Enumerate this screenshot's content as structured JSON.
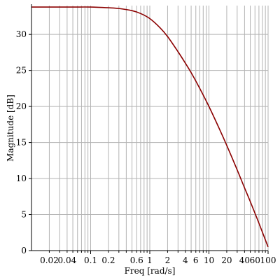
{
  "chart_data": {
    "type": "line",
    "title": "",
    "xlabel": "Freq [rad/s]",
    "ylabel": "Magnitude [dB]",
    "x_scale": "log",
    "xlim": [
      0.01,
      100
    ],
    "ylim": [
      0,
      34
    ],
    "grid": true,
    "x_major_ticks": [
      0.1,
      1,
      10,
      100
    ],
    "x_minor_ticks": [
      0.02,
      0.03,
      0.04,
      0.05,
      0.06,
      0.07,
      0.08,
      0.09,
      0.2,
      0.3,
      0.4,
      0.5,
      0.6,
      0.7,
      0.8,
      0.9,
      2,
      3,
      4,
      5,
      6,
      7,
      8,
      9,
      20,
      30,
      40,
      50,
      60,
      70,
      80,
      90
    ],
    "x_tick_labels": [
      {
        "value": 0.02,
        "label": "0.02"
      },
      {
        "value": 0.04,
        "label": "0.04"
      },
      {
        "value": 0.1,
        "label": "0.1"
      },
      {
        "value": 0.2,
        "label": "0.2"
      },
      {
        "value": 0.6,
        "label": "0.6"
      },
      {
        "value": 1,
        "label": "1"
      },
      {
        "value": 2,
        "label": "2"
      },
      {
        "value": 4,
        "label": "4"
      },
      {
        "value": 6,
        "label": "6"
      },
      {
        "value": 10,
        "label": "10"
      },
      {
        "value": 20,
        "label": "20"
      },
      {
        "value": 40,
        "label": "40"
      },
      {
        "value": 60,
        "label": "60"
      },
      {
        "value": 100,
        "label": "100"
      }
    ],
    "y_ticks": [
      0,
      5,
      10,
      15,
      20,
      25,
      30
    ],
    "y_tick_labels": [
      "0",
      "5",
      "10",
      "15",
      "20",
      "25",
      "30"
    ],
    "series": [
      {
        "color": "#8b0000",
        "x": [
          0.01,
          0.02,
          0.05,
          0.1,
          0.2,
          0.3,
          0.5,
          0.7,
          1,
          1.5,
          2,
          3,
          4,
          5,
          7,
          10,
          15,
          20,
          30,
          40,
          50,
          70,
          100
        ],
        "values": [
          33.8,
          33.8,
          33.8,
          33.8,
          33.7,
          33.6,
          33.3,
          32.9,
          32.2,
          30.9,
          29.7,
          27.6,
          26.0,
          24.7,
          22.5,
          20.0,
          16.9,
          14.6,
          11.2,
          8.7,
          6.8,
          3.8,
          0.5
        ]
      }
    ]
  }
}
